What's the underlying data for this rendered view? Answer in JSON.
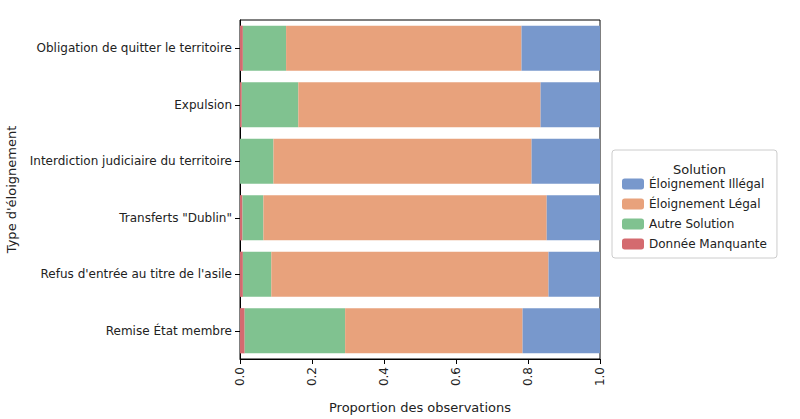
{
  "chart_data": {
    "type": "bar",
    "orientation": "horizontal",
    "stacked": true,
    "grid": false,
    "legend": "right",
    "legend_title": "Solution",
    "x_label": "Proportion des observations",
    "y_label": "Type d'éloignement",
    "categories": [
      "Obligation de quitter le territoire",
      "Expulsion",
      "Interdiction judiciaire du territoire",
      "Transferts \"Dublin\"",
      "Refus d'entrée au titre de l'asile",
      "Remise État membre"
    ],
    "series": [
      {
        "name": "Éloignement Illégal",
        "color": "#7898cc",
        "values": [
          0.218,
          0.165,
          0.19,
          0.148,
          0.143,
          0.215
        ]
      },
      {
        "name": "Éloignement Légal",
        "color": "#e8a27c",
        "values": [
          0.654,
          0.673,
          0.717,
          0.787,
          0.77,
          0.493
        ]
      },
      {
        "name": "Autre Solution",
        "color": "#80c290",
        "values": [
          0.12,
          0.157,
          0.093,
          0.058,
          0.079,
          0.279
        ]
      },
      {
        "name": "Donnée Manquante",
        "color": "#d46a6f",
        "values": [
          0.008,
          0.005,
          0,
          0.007,
          0.008,
          0.013
        ]
      }
    ],
    "xlim": [
      0,
      1
    ],
    "xticks": [
      {
        "value": 0,
        "label": "0.0"
      },
      0.2,
      0.4,
      0.6,
      0.8,
      {
        "value": 1,
        "label": "1.0"
      }
    ]
  }
}
